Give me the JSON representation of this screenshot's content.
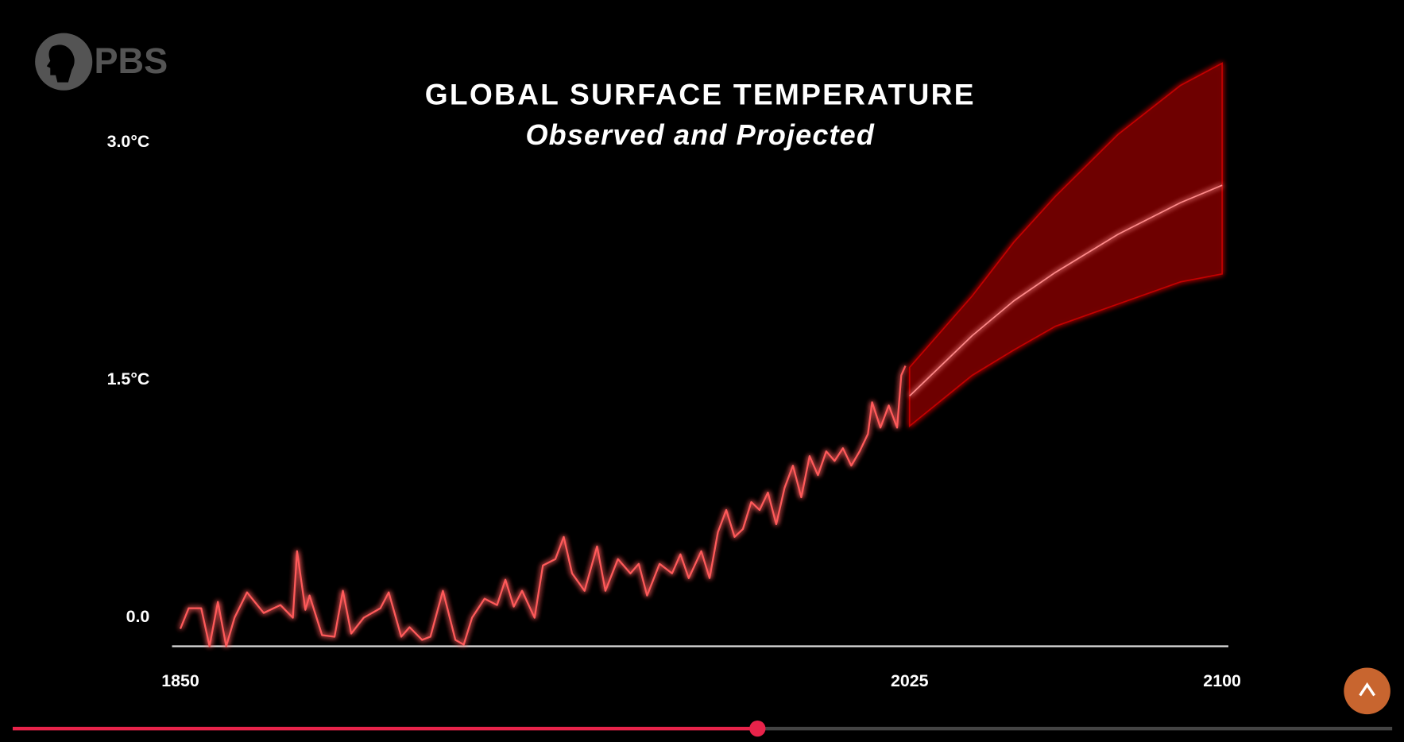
{
  "logo": "PBS",
  "chart_data": {
    "type": "line",
    "title": "GLOBAL SURFACE TEMPERATURE",
    "subtitle": "Observed and Projected",
    "xlim": [
      1848,
      2101.5
    ],
    "xticks": [
      1850,
      2025,
      2100
    ],
    "ylim": [
      -0.18,
      3.6
    ],
    "yticks": [
      {
        "value": 0,
        "label": "0.0"
      },
      {
        "value": 1.5,
        "label": "1.5°C"
      },
      {
        "value": 3,
        "label": "3.0°C"
      }
    ],
    "series": [
      {
        "color": "#ff5a5a",
        "x": [
          1850,
          1852,
          1855,
          1857,
          1859,
          1861,
          1863,
          1866,
          1870,
          1874,
          1877,
          1878,
          1880,
          1881,
          1884,
          1887,
          1889,
          1891,
          1894,
          1898,
          1900,
          1903,
          1905,
          1908,
          1910,
          1913,
          1916,
          1918,
          1920,
          1923,
          1926,
          1928,
          1930,
          1932,
          1935,
          1937,
          1940,
          1942,
          1944,
          1947,
          1950,
          1952,
          1955,
          1958,
          1960,
          1962,
          1965,
          1968,
          1970,
          1972,
          1975,
          1977,
          1979,
          1981,
          1983,
          1985,
          1987,
          1989,
          1991,
          1993,
          1995,
          1997,
          1999,
          2001,
          2003,
          2005,
          2007,
          2009,
          2011,
          2013,
          2015,
          2016,
          2018,
          2020,
          2022,
          2023,
          2024
        ],
        "values": [
          -0.07,
          0.06,
          0.06,
          -0.18,
          0.1,
          -0.18,
          0,
          0.16,
          0.03,
          0.08,
          0,
          0.42,
          0.05,
          0.14,
          -0.11,
          -0.12,
          0.17,
          -0.1,
          0,
          0.06,
          0.16,
          -0.12,
          -0.06,
          -0.14,
          -0.12,
          0.17,
          -0.14,
          -0.17,
          0,
          0.12,
          0.08,
          0.24,
          0.07,
          0.17,
          0,
          0.33,
          0.37,
          0.51,
          0.28,
          0.17,
          0.45,
          0.17,
          0.37,
          0.28,
          0.34,
          0.14,
          0.34,
          0.28,
          0.4,
          0.25,
          0.42,
          0.25,
          0.54,
          0.68,
          0.51,
          0.56,
          0.73,
          0.68,
          0.79,
          0.59,
          0.82,
          0.96,
          0.76,
          1.02,
          0.9,
          1.05,
          0.99,
          1.07,
          0.96,
          1.05,
          1.16,
          1.36,
          1.2,
          1.34,
          1.2,
          1.53,
          1.59
        ]
      },
      {
        "color": "#ff8a8a",
        "band_color": "#6e0000",
        "x": [
          2025,
          2040,
          2050,
          2060,
          2075,
          2090,
          2100
        ],
        "values": [
          1.4,
          1.78,
          2.0,
          2.18,
          2.42,
          2.62,
          2.73
        ],
        "upper": [
          1.58,
          2.03,
          2.37,
          2.66,
          3.05,
          3.36,
          3.5
        ],
        "lower": [
          1.21,
          1.53,
          1.69,
          1.84,
          1.98,
          2.12,
          2.17
        ]
      }
    ]
  }
}
